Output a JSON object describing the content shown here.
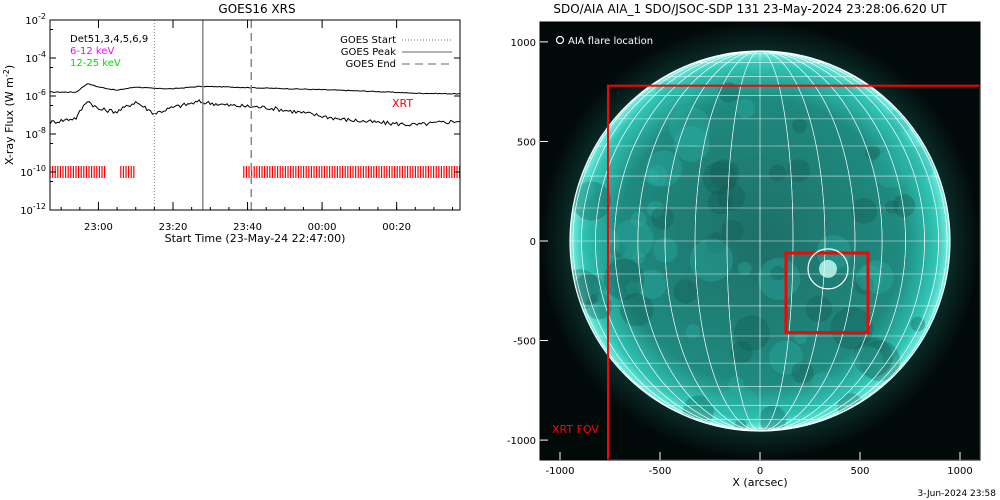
{
  "goes_panel": {
    "title": "GOES16 XRS",
    "ylabel": "X-ray Flux (W m",
    "ylabel_sup": "-2",
    "ylabel_end": ")",
    "xlabel": "Start Time (23-May-24 22:47:00)",
    "ytick_base": "10",
    "yticks_exp": [
      "-2",
      "-4",
      "-6",
      "-8",
      "-10",
      "-12"
    ],
    "xticks": [
      "23:00",
      "23:20",
      "23:40",
      "00:00",
      "00:20"
    ],
    "detectors_label": "Det51,3,4,5,6,9",
    "band_low": "6-12 keV",
    "band_high": "12-25 keV",
    "legend": [
      {
        "label": "GOES Start",
        "style": "dotted"
      },
      {
        "label": "GOES Peak",
        "style": "solid"
      },
      {
        "label": "GOES End",
        "style": "dashed"
      }
    ],
    "xrt_label": "XRT",
    "colors": {
      "band_low": "#ff00ff",
      "band_high": "#00ff00",
      "xrt": "#ff0000"
    }
  },
  "aia_panel": {
    "title": "SDO/AIA AIA_1 SDO/JSOC-SDP 131 23-May-2024 23:28:06.620 UT",
    "legend_label": "AIA flare location",
    "fov_label": "XRT FOV",
    "xlabel": "X (arcsec)",
    "xticks": [
      "-1000",
      "-500",
      "0",
      "500",
      "1000"
    ],
    "yticks": [
      "1000",
      "500",
      "0",
      "-500",
      "-1000"
    ],
    "colors": {
      "disk": "#1fa59a",
      "fov": "#ff0000",
      "grid": "#ffffff"
    }
  },
  "footer": {
    "timestamp": "3-Jun-2024 23:58"
  },
  "chart_data": [
    {
      "type": "line",
      "title": "GOES16 XRS",
      "xlabel": "Start Time (23-May-24 22:47:00)",
      "ylabel": "X-ray Flux (W m-2)",
      "yscale": "log",
      "ylim": [
        1e-12,
        0.01
      ],
      "x_range": [
        "22:47",
        "00:37"
      ],
      "grid": false,
      "legend_position": "top-right",
      "series": [
        {
          "name": "",
          "x": [
            "22:47",
            "22:54",
            "22:57",
            "23:00",
            "23:05",
            "23:10",
            "23:15",
            "23:20",
            "23:27",
            "23:35",
            "23:45",
            "23:55",
            "00:05",
            "00:15",
            "00:25",
            "00:37"
          ],
          "y": [
            1.6e-06,
            1.6e-06,
            4.5e-06,
            3e-06,
            2e-06,
            3e-06,
            2.5e-06,
            2.4e-06,
            3.2e-06,
            3e-06,
            2.6e-06,
            2.3e-06,
            2e-06,
            1.7e-06,
            1.4e-06,
            1.3e-06
          ]
        },
        {
          "name": "",
          "x": [
            "22:47",
            "22:54",
            "22:57",
            "23:00",
            "23:05",
            "23:10",
            "23:15",
            "23:20",
            "23:27",
            "23:35",
            "23:45",
            "23:55",
            "00:05",
            "00:15",
            "00:25",
            "00:37"
          ],
          "y": [
            4e-08,
            7e-08,
            6e-07,
            2e-07,
            1.5e-07,
            5e-07,
            1.2e-07,
            2.5e-07,
            5e-07,
            3.2e-07,
            2.5e-07,
            1.3e-07,
            6e-08,
            4e-08,
            3e-08,
            5e-08
          ]
        }
      ],
      "vlines": [
        {
          "label": "GOES Start",
          "x": "23:15",
          "style": "dotted"
        },
        {
          "label": "GOES Peak",
          "x": "23:28",
          "style": "solid"
        },
        {
          "label": "GOES End",
          "x": "23:41",
          "style": "dashed"
        }
      ],
      "xrt_coverage": [
        [
          "22:47",
          "23:02"
        ],
        [
          "23:06",
          "23:10"
        ],
        [
          "23:39",
          "00:37"
        ]
      ]
    },
    {
      "type": "image",
      "title": "SDO/AIA AIA_1 SDO/JSOC-SDP 131 23-May-2024 23:28:06.620 UT",
      "xlabel": "X (arcsec)",
      "xlim": [
        -1100,
        1100
      ],
      "ylim": [
        -1100,
        1100
      ],
      "solar_radius": 950,
      "xrt_fov": {
        "x": [
          -760,
          1100
        ],
        "y": [
          -1100,
          780
        ]
      },
      "flare_box": {
        "x": [
          130,
          540
        ],
        "y": [
          -460,
          -60
        ]
      },
      "flare_location": {
        "x": 340,
        "y": -140,
        "radius": 100
      }
    }
  ]
}
